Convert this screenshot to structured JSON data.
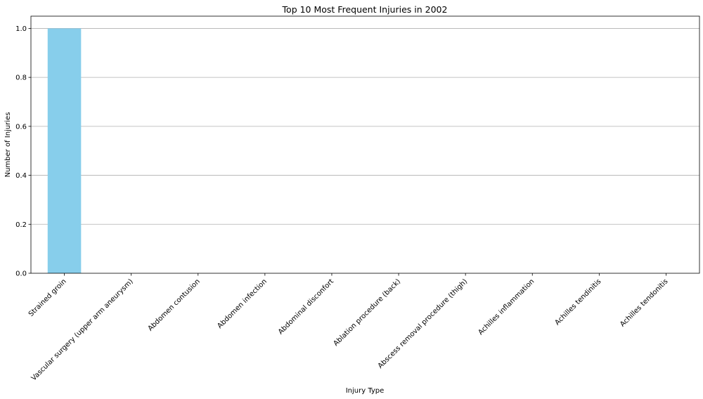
{
  "chart_data": {
    "type": "bar",
    "title": "Top 10 Most Frequent Injuries in 2002",
    "xlabel": "Injury Type",
    "ylabel": "Number of Injuries",
    "categories": [
      "Strained groin",
      "Vascular surgery (upper arm aneurysm)",
      "Abdomen contusion",
      "Abdomen infection",
      "Abdominal disconfort",
      "Ablation procedure (back)",
      "Abscess removal procedure (thigh)",
      "Achilles inflammation",
      "Achilles tendinitis",
      "Achilles tendonitis"
    ],
    "values": [
      1,
      0,
      0,
      0,
      0,
      0,
      0,
      0,
      0,
      0
    ],
    "ylim": [
      0,
      1.05
    ],
    "yticks": [
      "0.0",
      "0.2",
      "0.4",
      "0.6",
      "0.8",
      "1.0"
    ],
    "grid": "y",
    "bar_color": "#87ceeb",
    "legend": "none"
  }
}
